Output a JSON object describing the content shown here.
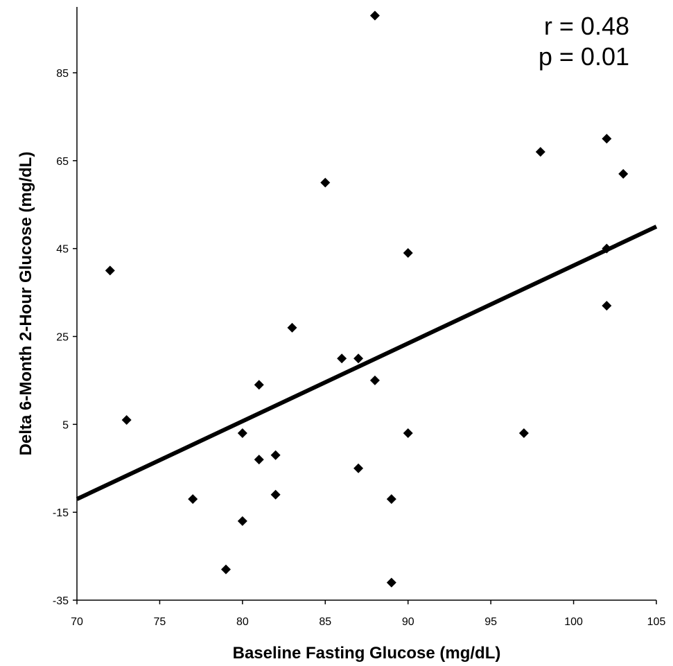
{
  "chart_data": {
    "type": "scatter",
    "xlabel": "Baseline Fasting Glucose (mg/dL)",
    "ylabel": "Delta 6-Month 2-Hour Glucose (mg/dL)",
    "xlim": [
      70,
      105
    ],
    "ylim": [
      -35,
      100
    ],
    "xticks": [
      70,
      75,
      80,
      85,
      90,
      95,
      100,
      105
    ],
    "yticks": [
      -35,
      -15,
      5,
      25,
      45,
      65,
      85
    ],
    "grid": false,
    "annotations": [
      "r = 0.48",
      "p = 0.01"
    ],
    "trendline": {
      "x": [
        70,
        105
      ],
      "y": [
        -12,
        50
      ]
    },
    "points": [
      {
        "x": 72,
        "y": 40
      },
      {
        "x": 73,
        "y": 6
      },
      {
        "x": 77,
        "y": -12
      },
      {
        "x": 79,
        "y": -28
      },
      {
        "x": 80,
        "y": 3
      },
      {
        "x": 80,
        "y": -17
      },
      {
        "x": 81,
        "y": 14
      },
      {
        "x": 81,
        "y": -3
      },
      {
        "x": 82,
        "y": -2
      },
      {
        "x": 82,
        "y": -11
      },
      {
        "x": 83,
        "y": 27
      },
      {
        "x": 85,
        "y": 60
      },
      {
        "x": 86,
        "y": 20
      },
      {
        "x": 87,
        "y": 20
      },
      {
        "x": 87,
        "y": -5
      },
      {
        "x": 88,
        "y": 98
      },
      {
        "x": 88,
        "y": 15
      },
      {
        "x": 89,
        "y": -12
      },
      {
        "x": 89,
        "y": -31
      },
      {
        "x": 90,
        "y": 44
      },
      {
        "x": 90,
        "y": 3
      },
      {
        "x": 97,
        "y": 3
      },
      {
        "x": 98,
        "y": 67
      },
      {
        "x": 102,
        "y": 70
      },
      {
        "x": 102,
        "y": 45
      },
      {
        "x": 102,
        "y": 32
      },
      {
        "x": 103,
        "y": 62
      }
    ],
    "marker_color": "#000000"
  }
}
